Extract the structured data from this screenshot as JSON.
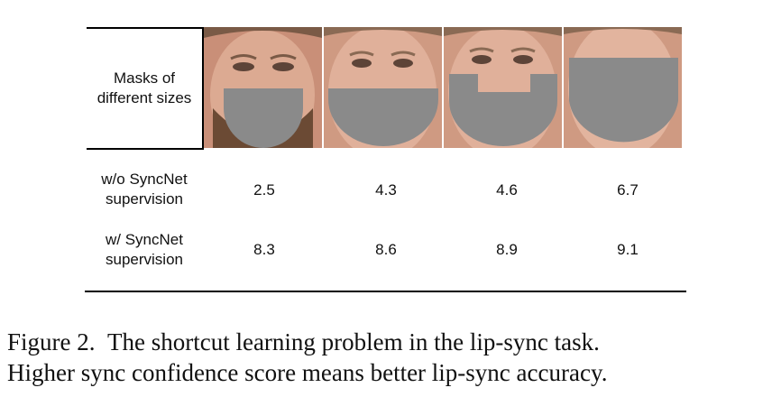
{
  "header_label": [
    "Masks of",
    "different sizes"
  ],
  "rows": [
    {
      "label": [
        "w/o SyncNet",
        "supervision"
      ],
      "values": [
        "2.5",
        "4.3",
        "4.6",
        "6.7"
      ]
    },
    {
      "label": [
        "w/ SyncNet",
        "supervision"
      ],
      "values": [
        "8.3",
        "8.6",
        "8.9",
        "9.1"
      ]
    }
  ],
  "caption": {
    "figure": "Figure 2.",
    "line1": "The shortcut learning problem in the lip-sync task.",
    "line2": "Higher sync confidence score means better lip-sync accuracy."
  },
  "colors": {
    "mask": "#8a8a8a",
    "skin": "#d9a48c",
    "rule": "#000000"
  }
}
